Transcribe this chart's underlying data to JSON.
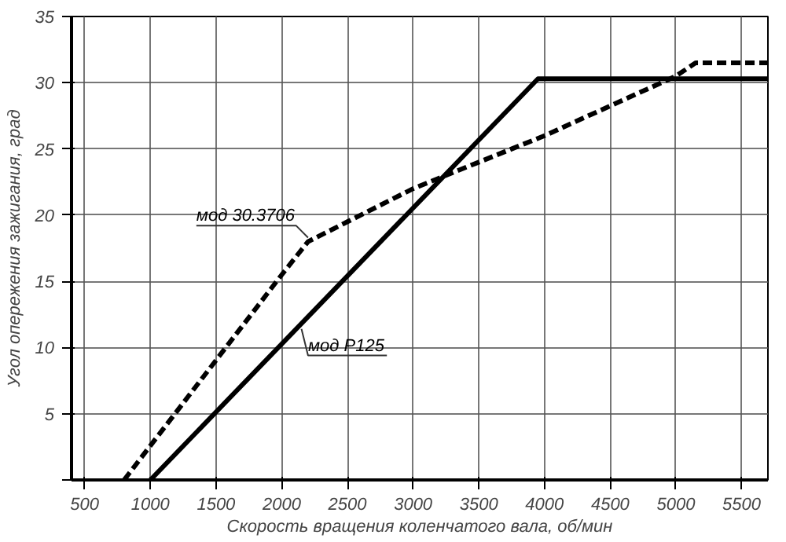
{
  "chart_data": {
    "type": "line",
    "xlabel": "Скорость вращения коленчатого вала, об/мин",
    "ylabel": "Угол опережения зажигания, град",
    "xlim": [
      400,
      5700
    ],
    "xticks": [
      500,
      1000,
      1500,
      2000,
      2500,
      3000,
      3500,
      4000,
      4500,
      5000,
      5500
    ],
    "ylim": [
      0,
      35
    ],
    "yticks": [
      {
        "value": 0,
        "label": null
      },
      5,
      10,
      15,
      20,
      25,
      30,
      35
    ],
    "grid": true,
    "marker": "none",
    "series": [
      {
        "name": "мод 30.3706",
        "color": "#000000",
        "line_style": "dashed",
        "x": [
          800,
          2000,
          2200,
          2500,
          3000,
          4000,
          5000,
          5150,
          5700
        ],
        "values": [
          0,
          15.5,
          18,
          19.5,
          22,
          26,
          30.5,
          31.5,
          31.5
        ]
      },
      {
        "name": "мод Р125",
        "color": "#000000",
        "line_style": "solid",
        "x": [
          1000,
          3950,
          5700
        ],
        "values": [
          0,
          30.3,
          30.3
        ]
      }
    ]
  }
}
